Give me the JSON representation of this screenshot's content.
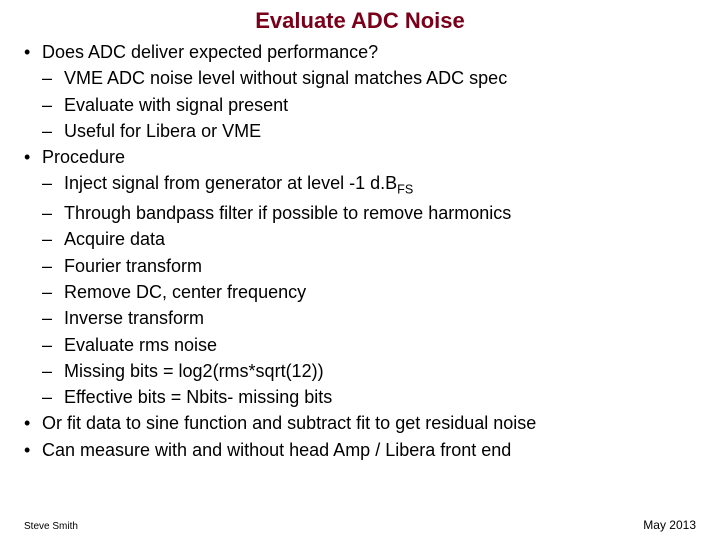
{
  "title": {
    "text": "Evaluate ADC Noise",
    "color": "#7a0019",
    "fontsize": 22
  },
  "body": {
    "color": "#000000",
    "fontsize": 18
  },
  "bullets": [
    {
      "text": "Does ADC deliver expected performance?",
      "children": [
        {
          "text": "VME ADC noise level without signal matches ADC spec"
        },
        {
          "text": "Evaluate with signal present"
        },
        {
          "text": "Useful for Libera or VME"
        }
      ]
    },
    {
      "text": "Procedure",
      "children": [
        {
          "pre": "Inject signal from generator at level  -1 d.B",
          "sub": "FS",
          "post": ""
        },
        {
          "text": "Through bandpass filter if possible to remove harmonics"
        },
        {
          "text": "Acquire data"
        },
        {
          "text": "Fourier transform"
        },
        {
          "text": "Remove DC, center frequency"
        },
        {
          "text": "Inverse transform"
        },
        {
          "text": "Evaluate rms noise"
        },
        {
          "text": "Missing bits = log2(rms*sqrt(12))"
        },
        {
          "text": "Effective bits = Nbits- missing bits"
        }
      ]
    },
    {
      "text": "Or fit data to sine function and subtract fit to get residual noise"
    },
    {
      "text": "Can measure with and without head Amp / Libera front end"
    }
  ],
  "footer": {
    "left": "Steve Smith",
    "right": "May 2013",
    "color": "#000000"
  }
}
